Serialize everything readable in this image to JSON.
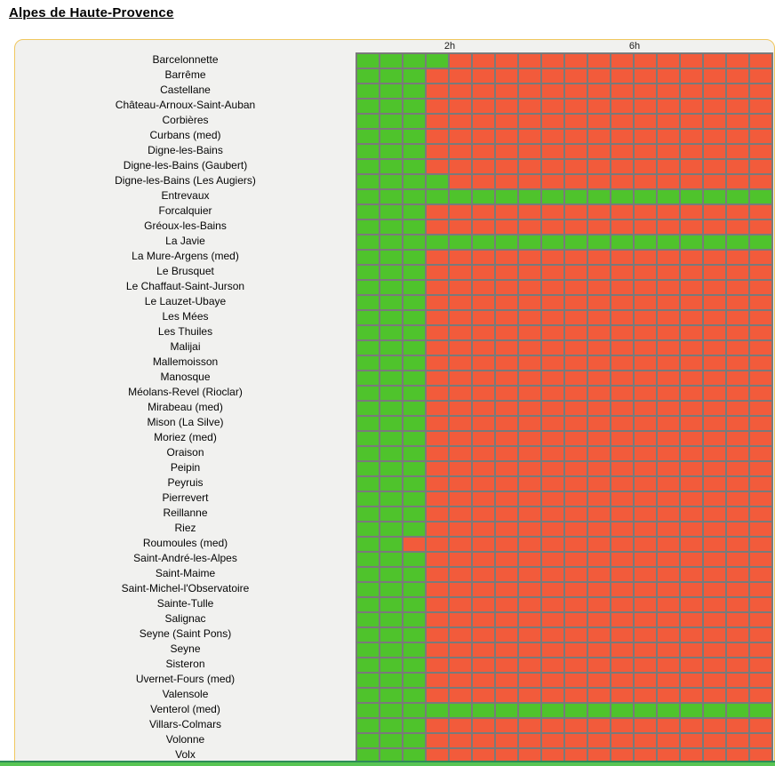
{
  "colors": {
    "green": "#4fc32c",
    "red": "#f25b3b",
    "gridline": "#7a7a7a",
    "panel_bg": "#f1f1ef",
    "panel_border": "#f0c75e",
    "bar_green": "#58c553",
    "bar_dark": "#2e8b57"
  },
  "chart_data": {
    "type": "heatmap",
    "title": "Alpes de Haute-Provence",
    "x_axis": {
      "cell_minutes": 30,
      "total_cells": 18,
      "ticks": [
        {
          "label": "2h",
          "cell_index": 4
        },
        {
          "label": "6h",
          "cell_index": 12
        }
      ]
    },
    "cell_states": [
      "green",
      "red"
    ],
    "rows": [
      {
        "label": "Barcelonnette",
        "green_cells": 4
      },
      {
        "label": "Barrême",
        "green_cells": 3
      },
      {
        "label": "Castellane",
        "green_cells": 3
      },
      {
        "label": "Château-Arnoux-Saint-Auban",
        "green_cells": 3
      },
      {
        "label": "Corbières",
        "green_cells": 3
      },
      {
        "label": "Curbans (med)",
        "green_cells": 3
      },
      {
        "label": "Digne-les-Bains",
        "green_cells": 3
      },
      {
        "label": "Digne-les-Bains (Gaubert)",
        "green_cells": 3
      },
      {
        "label": "Digne-les-Bains (Les Augiers)",
        "green_cells": 4
      },
      {
        "label": "Entrevaux",
        "green_cells": 18
      },
      {
        "label": "Forcalquier",
        "green_cells": 3
      },
      {
        "label": "Gréoux-les-Bains",
        "green_cells": 3
      },
      {
        "label": "La Javie",
        "green_cells": 18
      },
      {
        "label": "La Mure-Argens (med)",
        "green_cells": 3
      },
      {
        "label": "Le Brusquet",
        "green_cells": 3
      },
      {
        "label": "Le Chaffaut-Saint-Jurson",
        "green_cells": 3
      },
      {
        "label": "Le Lauzet-Ubaye",
        "green_cells": 3
      },
      {
        "label": "Les Mées",
        "green_cells": 3
      },
      {
        "label": "Les Thuiles",
        "green_cells": 3
      },
      {
        "label": "Malijai",
        "green_cells": 3
      },
      {
        "label": "Mallemoisson",
        "green_cells": 3
      },
      {
        "label": "Manosque",
        "green_cells": 3
      },
      {
        "label": "Méolans-Revel (Rioclar)",
        "green_cells": 3
      },
      {
        "label": "Mirabeau (med)",
        "green_cells": 3
      },
      {
        "label": "Mison (La Silve)",
        "green_cells": 3
      },
      {
        "label": "Moriez (med)",
        "green_cells": 3
      },
      {
        "label": "Oraison",
        "green_cells": 3
      },
      {
        "label": "Peipin",
        "green_cells": 3
      },
      {
        "label": "Peyruis",
        "green_cells": 3
      },
      {
        "label": "Pierrevert",
        "green_cells": 3
      },
      {
        "label": "Reillanne",
        "green_cells": 3
      },
      {
        "label": "Riez",
        "green_cells": 3
      },
      {
        "label": "Roumoules (med)",
        "green_cells": 2
      },
      {
        "label": "Saint-André-les-Alpes",
        "green_cells": 3
      },
      {
        "label": "Saint-Maime",
        "green_cells": 3
      },
      {
        "label": "Saint-Michel-l'Observatoire",
        "green_cells": 3
      },
      {
        "label": "Sainte-Tulle",
        "green_cells": 3
      },
      {
        "label": "Salignac",
        "green_cells": 3
      },
      {
        "label": "Seyne (Saint Pons)",
        "green_cells": 3
      },
      {
        "label": "Seyne",
        "green_cells": 3
      },
      {
        "label": "Sisteron",
        "green_cells": 3
      },
      {
        "label": "Uvernet-Fours (med)",
        "green_cells": 3
      },
      {
        "label": "Valensole",
        "green_cells": 3
      },
      {
        "label": "Venterol (med)",
        "green_cells": 18
      },
      {
        "label": "Villars-Colmars",
        "green_cells": 3
      },
      {
        "label": "Volonne",
        "green_cells": 3
      },
      {
        "label": "Volx",
        "green_cells": 3
      }
    ]
  }
}
